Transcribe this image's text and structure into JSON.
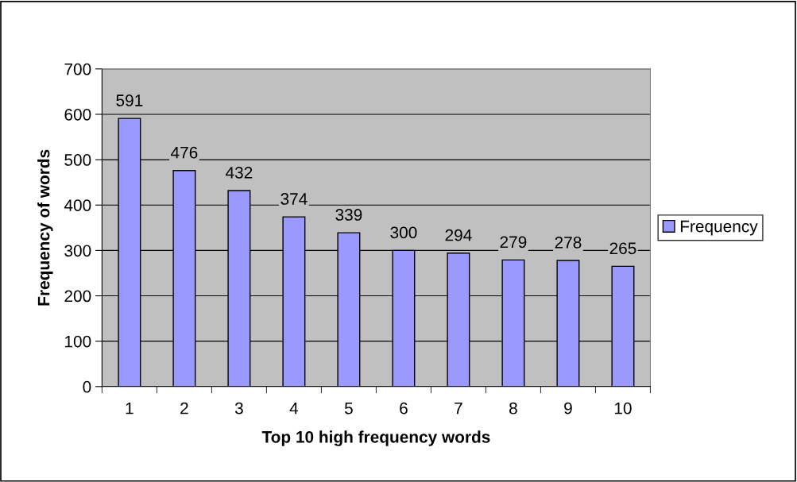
{
  "chart_data": {
    "type": "bar",
    "xlabel": "Top 10 high frequency words",
    "ylabel": "Frequency of words",
    "categories": [
      "1",
      "2",
      "3",
      "4",
      "5",
      "6",
      "7",
      "8",
      "9",
      "10"
    ],
    "series": [
      {
        "name": "Frequency",
        "color": "#9999ff",
        "values": [
          591,
          476,
          432,
          374,
          339,
          300,
          294,
          279,
          278,
          265
        ]
      }
    ],
    "ylim": [
      0,
      700
    ],
    "yticks": [
      0,
      100,
      200,
      300,
      400,
      500,
      600,
      700
    ],
    "grid": "y",
    "legend": "right",
    "data_labels": true
  }
}
